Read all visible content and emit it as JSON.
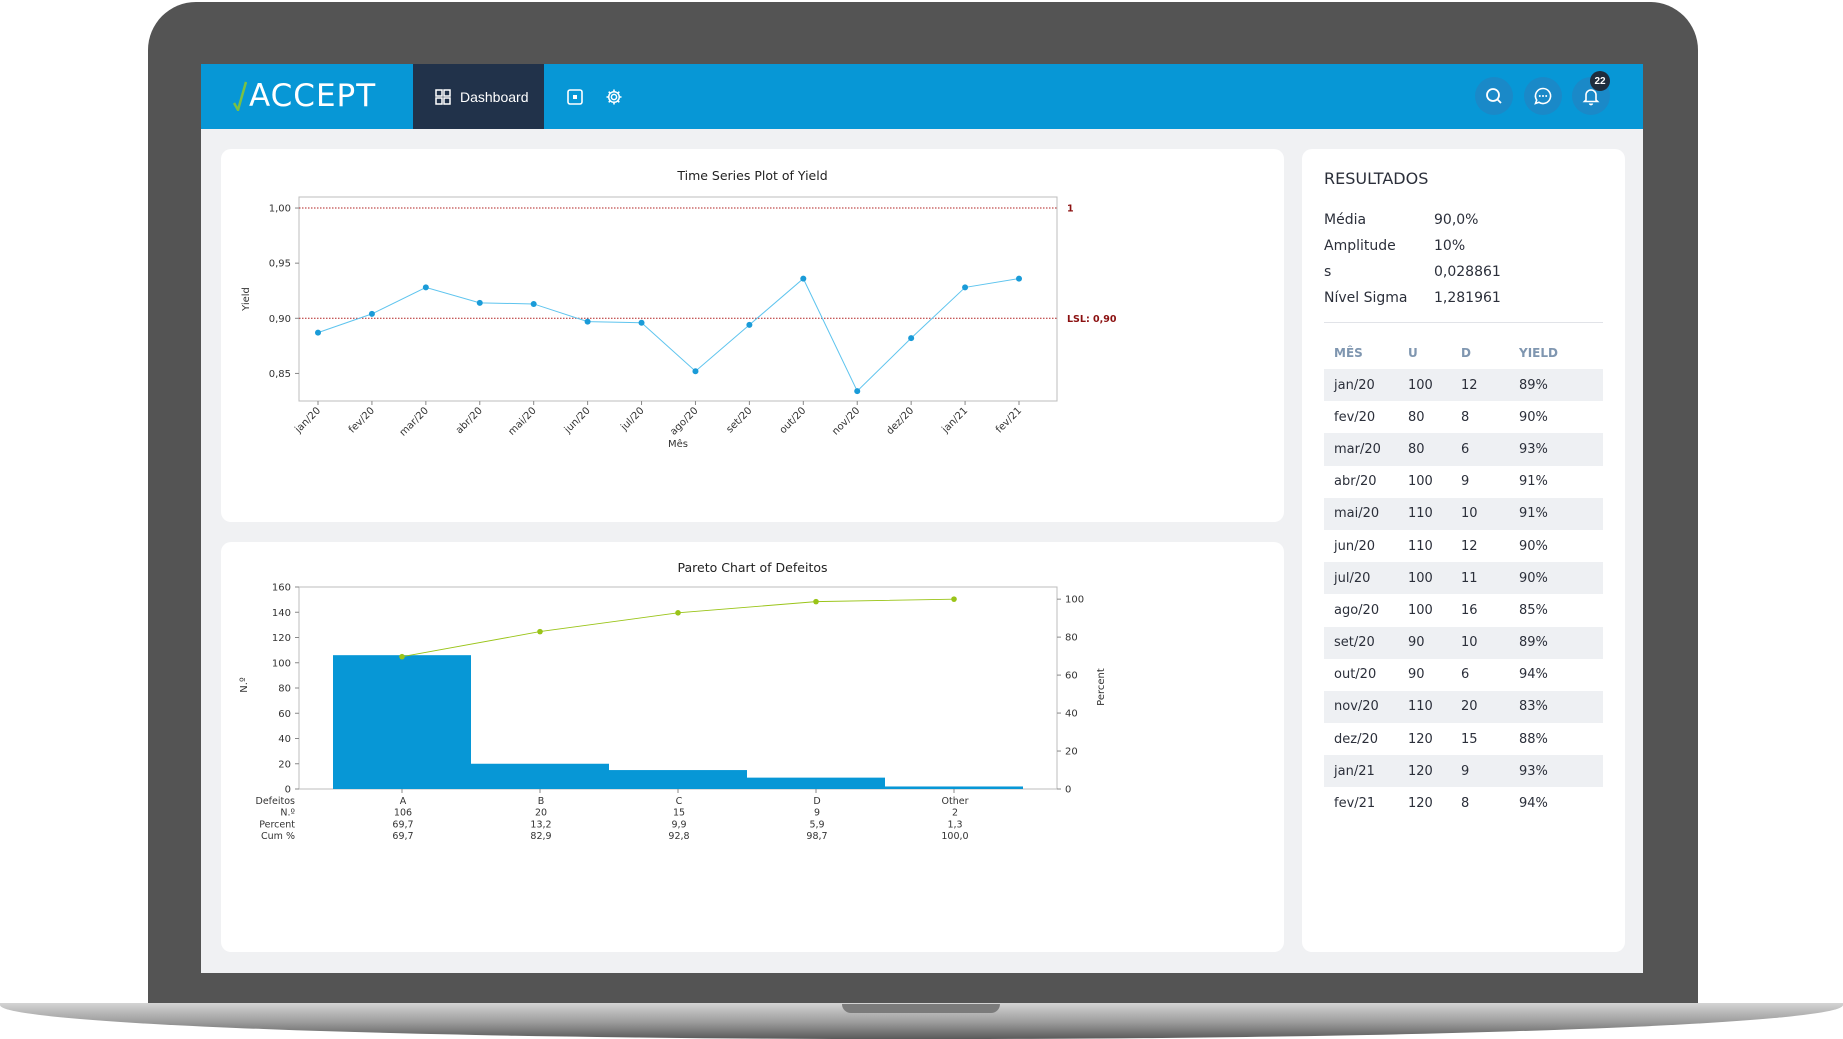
{
  "app": {
    "logo": "ACCEPT",
    "nav": {
      "dashboard_label": "Dashboard"
    },
    "notifications_count": "22",
    "colors": {
      "brand": "#0797d6",
      "nav_active": "#21324a",
      "bar": "#0797d6",
      "line": "#5ec4ee",
      "cum_line": "#9ac418",
      "limit": "#b22222"
    }
  },
  "chart_data": [
    {
      "type": "line",
      "title": "Time Series Plot of Yield",
      "xlabel": "Mês",
      "ylabel": "Yield",
      "categories": [
        "jan/20",
        "fev/20",
        "mar/20",
        "abr/20",
        "mai/20",
        "jun/20",
        "jul/20",
        "ago/20",
        "set/20",
        "out/20",
        "nov/20",
        "dez/20",
        "jan/21",
        "fev/21"
      ],
      "values": [
        0.887,
        0.904,
        0.928,
        0.914,
        0.913,
        0.897,
        0.896,
        0.852,
        0.894,
        0.936,
        0.834,
        0.882,
        0.928,
        0.936
      ],
      "yticks": [
        1.0,
        0.95,
        0.9,
        0.85
      ],
      "ytick_labels": [
        "1,00",
        "0,95",
        "0,90",
        "0,85"
      ],
      "ylim": [
        0.825,
        1.01
      ],
      "reference_lines": [
        {
          "value": 1.0,
          "label": "1"
        },
        {
          "value": 0.9,
          "label": "LSL: 0,90"
        }
      ]
    },
    {
      "type": "bar",
      "title": "Pareto Chart of Defeitos",
      "ylabel": "N.º",
      "y2label": "Percent",
      "categories": [
        "A",
        "B",
        "C",
        "D",
        "Other"
      ],
      "values": [
        106,
        20,
        15,
        9,
        2
      ],
      "cumulative_percent": [
        69.7,
        82.9,
        92.8,
        98.7,
        100.0
      ],
      "ylim": [
        0,
        160
      ],
      "yticks": [
        0,
        20,
        40,
        60,
        80,
        100,
        120,
        140,
        160
      ],
      "y2lim": [
        0,
        106.4
      ],
      "y2ticks": [
        0,
        20,
        40,
        60,
        80,
        100
      ],
      "table": {
        "row_labels": [
          "Defeitos",
          "N.º",
          "Percent",
          "Cum %"
        ],
        "rows": [
          [
            "A",
            "B",
            "C",
            "D",
            "Other"
          ],
          [
            "106",
            "20",
            "15",
            "9",
            "2"
          ],
          [
            "69,7",
            "13,2",
            "9,9",
            "5,9",
            "1,3"
          ],
          [
            "69,7",
            "82,9",
            "92,8",
            "98,7",
            "100,0"
          ]
        ]
      }
    }
  ],
  "results": {
    "title": "RESULTADOS",
    "stats": [
      {
        "label": "Média",
        "value": "90,0%"
      },
      {
        "label": "Amplitude",
        "value": "10%"
      },
      {
        "label": "s",
        "value": "0,028861"
      },
      {
        "label": "Nível Sigma",
        "value": "1,281961"
      }
    ],
    "table": {
      "headers": [
        "MÊS",
        "U",
        "D",
        "YIELD"
      ],
      "rows": [
        [
          "jan/20",
          "100",
          "12",
          "89%"
        ],
        [
          "fev/20",
          "80",
          "8",
          "90%"
        ],
        [
          "mar/20",
          "80",
          "6",
          "93%"
        ],
        [
          "abr/20",
          "100",
          "9",
          "91%"
        ],
        [
          "mai/20",
          "110",
          "10",
          "91%"
        ],
        [
          "jun/20",
          "110",
          "12",
          "90%"
        ],
        [
          "jul/20",
          "100",
          "11",
          "90%"
        ],
        [
          "ago/20",
          "100",
          "16",
          "85%"
        ],
        [
          "set/20",
          "90",
          "10",
          "89%"
        ],
        [
          "out/20",
          "90",
          "6",
          "94%"
        ],
        [
          "nov/20",
          "110",
          "20",
          "83%"
        ],
        [
          "dez/20",
          "120",
          "15",
          "88%"
        ],
        [
          "jan/21",
          "120",
          "9",
          "93%"
        ],
        [
          "fev/21",
          "120",
          "8",
          "94%"
        ]
      ]
    }
  }
}
